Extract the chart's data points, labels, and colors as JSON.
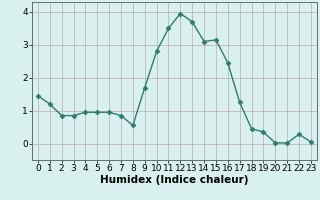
{
  "x": [
    0,
    1,
    2,
    3,
    4,
    5,
    6,
    7,
    8,
    9,
    10,
    11,
    12,
    13,
    14,
    15,
    16,
    17,
    18,
    19,
    20,
    21,
    22,
    23
  ],
  "y": [
    1.45,
    1.2,
    0.85,
    0.85,
    0.95,
    0.95,
    0.95,
    0.85,
    0.55,
    1.7,
    2.8,
    3.5,
    3.95,
    3.7,
    3.1,
    3.15,
    2.45,
    1.25,
    0.45,
    0.35,
    0.02,
    0.02,
    0.28,
    0.05
  ],
  "xlabel": "Humidex (Indice chaleur)",
  "line_color": "#2d7d6e",
  "marker": "D",
  "marker_size": 2.5,
  "bg_color": "#d8f0ee",
  "grid_color": "#c4a8a8",
  "xlim": [
    -0.5,
    23.5
  ],
  "ylim": [
    -0.5,
    4.3
  ],
  "yticks": [
    0,
    1,
    2,
    3,
    4
  ],
  "xticks": [
    0,
    1,
    2,
    3,
    4,
    5,
    6,
    7,
    8,
    9,
    10,
    11,
    12,
    13,
    14,
    15,
    16,
    17,
    18,
    19,
    20,
    21,
    22,
    23
  ],
  "xlabel_fontsize": 7.5,
  "tick_fontsize": 6.5,
  "xlabel_fontweight": "bold"
}
